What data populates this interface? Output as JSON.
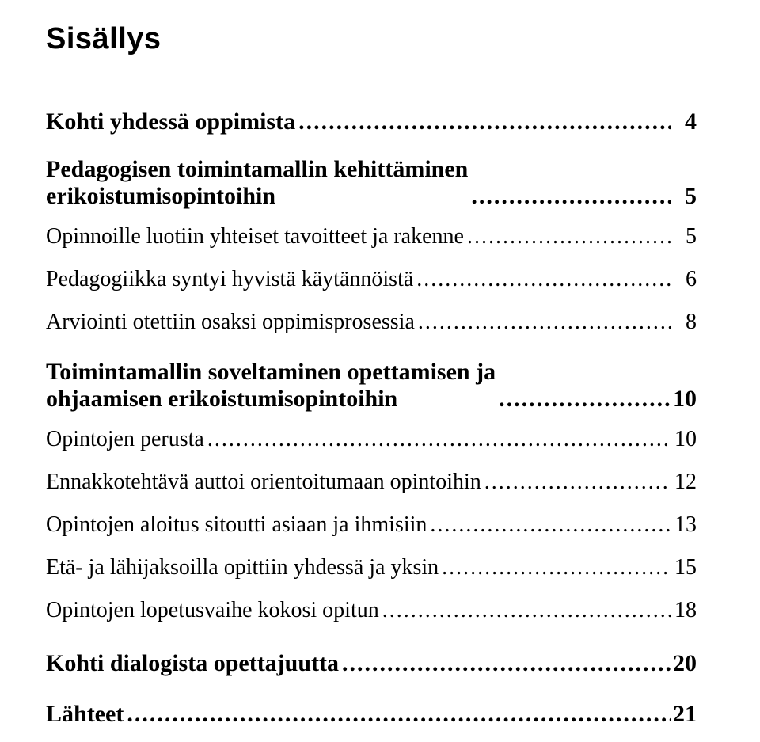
{
  "title": "Sisällys",
  "entries": [
    {
      "level": 1,
      "lines": [
        "Kohti yhdessä oppimista"
      ],
      "page": "4"
    },
    {
      "level": 1,
      "lines": [
        "Pedagogisen toimintamallin kehittäminen",
        "erikoistumisopintoihin"
      ],
      "page": "5"
    },
    {
      "level": 2,
      "lines": [
        "Opinnoille luotiin yhteiset tavoitteet ja rakenne"
      ],
      "page": "5"
    },
    {
      "level": 2,
      "lines": [
        "Pedagogiikka syntyi hyvistä käytännöistä"
      ],
      "page": "6"
    },
    {
      "level": 2,
      "lines": [
        "Arviointi otettiin osaksi oppimisprosessia"
      ],
      "page": "8"
    },
    {
      "level": 1,
      "lines": [
        "Toimintamallin soveltaminen opettamisen ja",
        "ohjaamisen erikoistumisopintoihin"
      ],
      "page": "10"
    },
    {
      "level": 2,
      "lines": [
        "Opintojen perusta"
      ],
      "page": "10"
    },
    {
      "level": 2,
      "lines": [
        "Ennakkotehtävä auttoi orientoitumaan opintoihin"
      ],
      "page": "12"
    },
    {
      "level": 2,
      "lines": [
        "Opintojen aloitus sitoutti asiaan ja ihmisiin"
      ],
      "page": "13"
    },
    {
      "level": 2,
      "lines": [
        "Etä- ja lähijaksoilla opittiin yhdessä ja yksin"
      ],
      "page": "15"
    },
    {
      "level": 2,
      "lines": [
        "Opintojen lopetusvaihe kokosi opitun"
      ],
      "page": "18"
    },
    {
      "level": 1,
      "lines": [
        "Kohti dialogista opettajuutta"
      ],
      "page": "20"
    },
    {
      "level": 1,
      "lines": [
        "Lähteet"
      ],
      "page": "21"
    }
  ]
}
